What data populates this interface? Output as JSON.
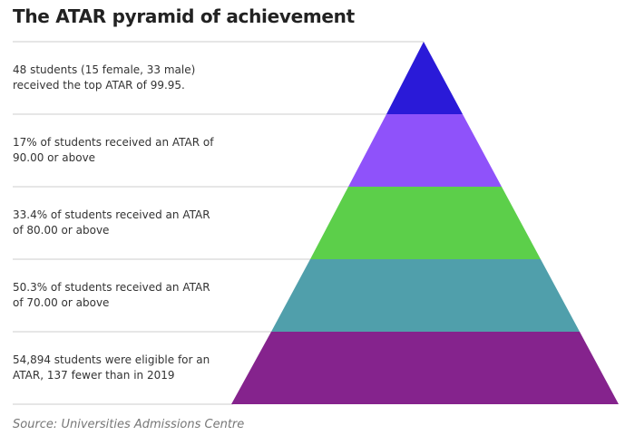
{
  "title": "The ATAR pyramid of achievement",
  "tiers": [
    {
      "label": "48 students (15 female, 33 male) received the top ATAR of 99.95.",
      "color": "#2a1ad8"
    },
    {
      "label": "17% of students received an ATAR of 90.00 or above",
      "color": "#8f52fa"
    },
    {
      "label": "33.4% of students received an ATAR of 80.00 or above",
      "color": "#5ccf4a"
    },
    {
      "label": "50.3% of students received an ATAR of 70.00 or above",
      "color": "#509fab"
    },
    {
      "label": "54,894 students were eligible for an ATAR, 137 fewer than in 2019",
      "color": "#85238d"
    }
  ],
  "source": "Source: Universities Admissions Centre"
}
